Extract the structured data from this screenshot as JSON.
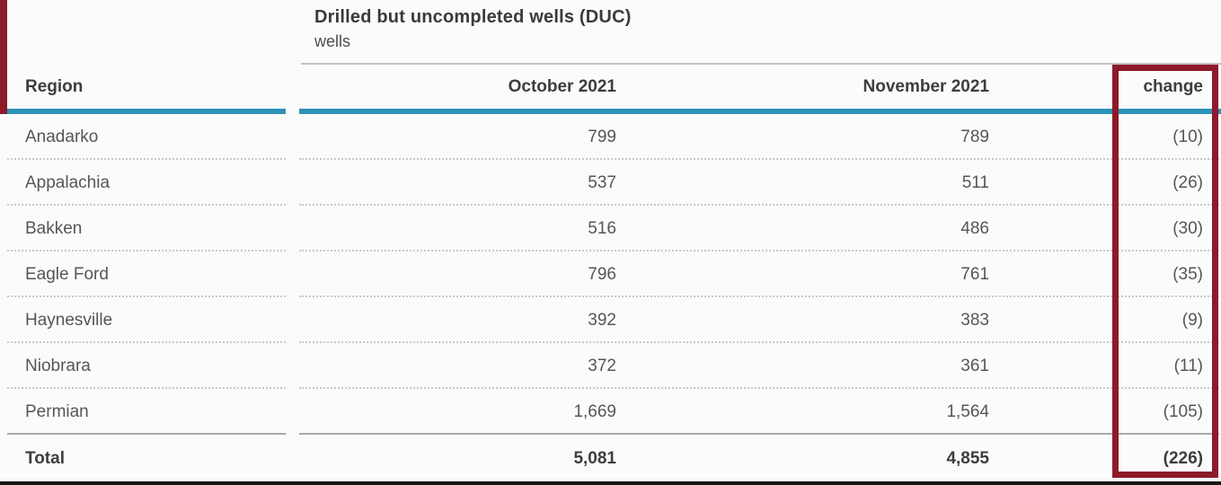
{
  "title": {
    "heading": "Drilled but uncompleted wells (DUC)",
    "unit_label": "wells"
  },
  "table": {
    "columns": {
      "region": "Region",
      "oct": "October 2021",
      "nov": "November 2021",
      "change": "change"
    },
    "rows": [
      {
        "region": "Anadarko",
        "oct": "799",
        "nov": "789",
        "change": "(10)"
      },
      {
        "region": "Appalachia",
        "oct": "537",
        "nov": "511",
        "change": "(26)"
      },
      {
        "region": "Bakken",
        "oct": "516",
        "nov": "486",
        "change": "(30)"
      },
      {
        "region": "Eagle Ford",
        "oct": "796",
        "nov": "761",
        "change": "(35)"
      },
      {
        "region": "Haynesville",
        "oct": "392",
        "nov": "383",
        "change": "(9)"
      },
      {
        "region": "Niobrara",
        "oct": "372",
        "nov": "361",
        "change": "(11)"
      },
      {
        "region": "Permian",
        "oct": "1,669",
        "nov": "1,564",
        "change": "(105)"
      }
    ],
    "total": {
      "region": "Total",
      "oct": "5,081",
      "nov": "4,855",
      "change": "(226)"
    }
  },
  "colors": {
    "header_underline": "#2E93B7",
    "highlight_box": "#8C1A2B",
    "header_text": "#3D3D3D",
    "body_text": "#565656",
    "background": "#FBFBFB"
  },
  "chart_data": {
    "type": "table",
    "title": "Drilled but uncompleted wells (DUC)",
    "ylabel": "wells",
    "columns": [
      "Region",
      "October 2021",
      "November 2021",
      "change"
    ],
    "categories": [
      "Anadarko",
      "Appalachia",
      "Bakken",
      "Eagle Ford",
      "Haynesville",
      "Niobrara",
      "Permian",
      "Total"
    ],
    "series": [
      {
        "name": "October 2021",
        "values": [
          799,
          537,
          516,
          796,
          392,
          372,
          1669,
          5081
        ]
      },
      {
        "name": "November 2021",
        "values": [
          789,
          511,
          486,
          761,
          383,
          361,
          1564,
          4855
        ]
      },
      {
        "name": "change",
        "values": [
          -10,
          -26,
          -30,
          -35,
          -9,
          -11,
          -105,
          -226
        ]
      }
    ],
    "annotations": [
      "change column outlined with dark red highlight box"
    ]
  }
}
